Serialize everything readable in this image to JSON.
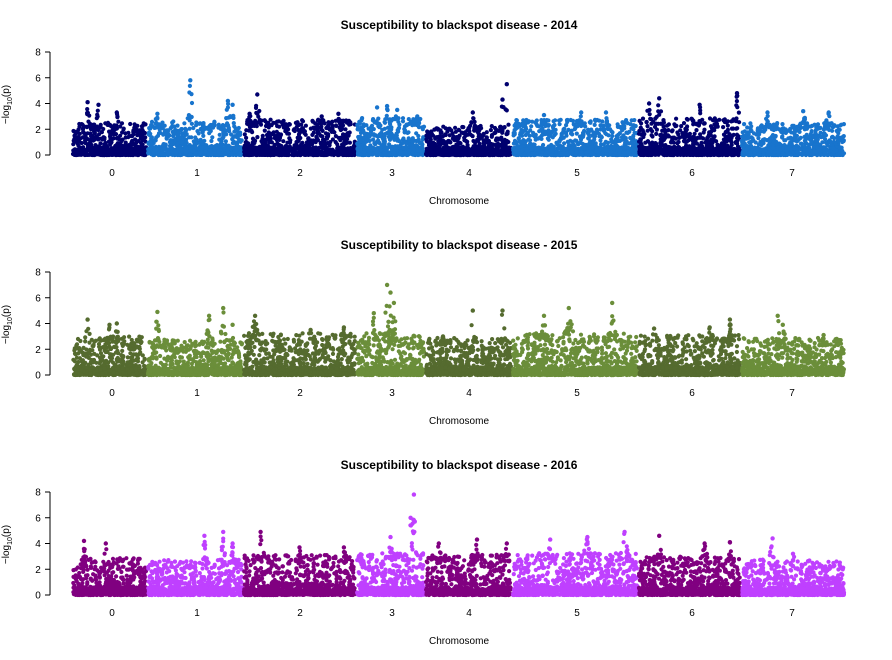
{
  "chart_data": [
    {
      "type": "scatter",
      "title": "Susceptibility to blackspot disease - 2014",
      "xlabel": "Chromosome",
      "ylabel_prefix": "−log",
      "ylabel_sub": "10",
      "ylabel_suffix": "(p)",
      "ylim": [
        0,
        8
      ],
      "yticks": [
        "0",
        "2",
        "4",
        "6",
        "8"
      ],
      "colors": [
        "#00006e",
        "#1874cd"
      ],
      "categories": [
        "0",
        "1",
        "2",
        "3",
        "4",
        "5",
        "6",
        "7"
      ],
      "series": [
        {
          "chromosome": "0",
          "color": "#00006e",
          "base_max": 2.0,
          "peaks": [
            [
              0.2,
              4.1
            ],
            [
              0.35,
              3.9
            ],
            [
              0.6,
              3.3
            ],
            [
              0.85,
              1.2
            ],
            [
              0.95,
              0.7
            ]
          ]
        },
        {
          "chromosome": "1",
          "color": "#1874cd",
          "base_max": 2.1,
          "peaks": [
            [
              0.1,
              3.2
            ],
            [
              0.45,
              5.8
            ],
            [
              0.85,
              4.2
            ],
            [
              0.9,
              3.9
            ]
          ]
        },
        {
          "chromosome": "2",
          "color": "#00006e",
          "base_max": 2.2,
          "peaks": [
            [
              0.05,
              3.2
            ],
            [
              0.12,
              4.7
            ],
            [
              0.7,
              3.0
            ],
            [
              0.85,
              3.2
            ]
          ]
        },
        {
          "chromosome": "3",
          "color": "#1874cd",
          "base_max": 2.3,
          "peaks": [
            [
              0.3,
              3.7
            ],
            [
              0.45,
              3.8
            ],
            [
              0.6,
              3.5
            ],
            [
              0.9,
              3.0
            ]
          ]
        },
        {
          "chromosome": "4",
          "color": "#00006e",
          "base_max": 1.8,
          "peaks": [
            [
              0.55,
              3.3
            ],
            [
              0.9,
              4.3
            ],
            [
              0.95,
              5.5
            ]
          ]
        },
        {
          "chromosome": "5",
          "color": "#1874cd",
          "base_max": 2.2,
          "peaks": [
            [
              0.25,
              3.1
            ],
            [
              0.55,
              3.3
            ],
            [
              0.75,
              3.3
            ]
          ]
        },
        {
          "chromosome": "6",
          "color": "#00006e",
          "base_max": 2.3,
          "peaks": [
            [
              0.1,
              4.0
            ],
            [
              0.2,
              4.4
            ],
            [
              0.6,
              3.9
            ],
            [
              0.97,
              4.8
            ]
          ]
        },
        {
          "chromosome": "7",
          "color": "#1874cd",
          "base_max": 2.0,
          "peaks": [
            [
              0.25,
              3.3
            ],
            [
              0.6,
              3.4
            ],
            [
              0.85,
              3.3
            ]
          ]
        }
      ]
    },
    {
      "type": "scatter",
      "title": "Susceptibility to blackspot disease - 2015",
      "xlabel": "Chromosome",
      "ylabel_prefix": "−log",
      "ylabel_sub": "10",
      "ylabel_suffix": "(p)",
      "ylim": [
        0,
        8
      ],
      "yticks": [
        "0",
        "2",
        "4",
        "6",
        "8"
      ],
      "colors": [
        "#556b2f",
        "#6b8e3a"
      ],
      "categories": [
        "0",
        "1",
        "2",
        "3",
        "4",
        "5",
        "6",
        "7"
      ],
      "series": [
        {
          "chromosome": "0",
          "color": "#556b2f",
          "base_max": 2.4,
          "peaks": [
            [
              0.2,
              4.3
            ],
            [
              0.5,
              3.9
            ],
            [
              0.6,
              4.0
            ],
            [
              0.9,
              0.6
            ]
          ]
        },
        {
          "chromosome": "1",
          "color": "#6b8e3a",
          "base_max": 2.2,
          "peaks": [
            [
              0.1,
              4.9
            ],
            [
              0.65,
              4.6
            ],
            [
              0.8,
              5.2
            ],
            [
              0.9,
              3.9
            ]
          ]
        },
        {
          "chromosome": "2",
          "color": "#556b2f",
          "base_max": 2.6,
          "peaks": [
            [
              0.1,
              4.6
            ],
            [
              0.6,
              3.5
            ],
            [
              0.9,
              3.7
            ]
          ]
        },
        {
          "chromosome": "3",
          "color": "#6b8e3a",
          "base_max": 2.6,
          "peaks": [
            [
              0.25,
              4.8
            ],
            [
              0.45,
              7.0
            ],
            [
              0.5,
              6.4
            ],
            [
              0.55,
              5.6
            ]
          ]
        },
        {
          "chromosome": "4",
          "color": "#556b2f",
          "base_max": 2.3,
          "peaks": [
            [
              0.2,
              3.0
            ],
            [
              0.55,
              5.0
            ],
            [
              0.9,
              5.0
            ]
          ]
        },
        {
          "chromosome": "5",
          "color": "#6b8e3a",
          "base_max": 2.6,
          "peaks": [
            [
              0.25,
              4.6
            ],
            [
              0.45,
              5.2
            ],
            [
              0.8,
              5.6
            ]
          ]
        },
        {
          "chromosome": "6",
          "color": "#556b2f",
          "base_max": 2.5,
          "peaks": [
            [
              0.15,
              3.6
            ],
            [
              0.7,
              3.7
            ],
            [
              0.9,
              4.3
            ]
          ]
        },
        {
          "chromosome": "7",
          "color": "#6b8e3a",
          "base_max": 2.3,
          "peaks": [
            [
              0.35,
              4.6
            ],
            [
              0.4,
              3.9
            ],
            [
              0.8,
              3.1
            ]
          ]
        }
      ]
    },
    {
      "type": "scatter",
      "title": "Susceptibility to blackspot disease - 2016",
      "xlabel": "Chromosome",
      "ylabel_prefix": "−log",
      "ylabel_sub": "10",
      "ylabel_suffix": "(p)",
      "ylim": [
        0,
        8
      ],
      "yticks": [
        "0",
        "2",
        "4",
        "6",
        "8"
      ],
      "colors": [
        "#800080",
        "#bf40ff"
      ],
      "categories": [
        "0",
        "1",
        "2",
        "3",
        "4",
        "5",
        "6",
        "7"
      ],
      "series": [
        {
          "chromosome": "0",
          "color": "#800080",
          "base_max": 2.3,
          "peaks": [
            [
              0.15,
              4.2
            ],
            [
              0.45,
              4.0
            ],
            [
              0.95,
              0.8
            ]
          ]
        },
        {
          "chromosome": "1",
          "color": "#bf40ff",
          "base_max": 2.2,
          "peaks": [
            [
              0.6,
              4.6
            ],
            [
              0.8,
              4.9
            ],
            [
              0.9,
              4.0
            ]
          ]
        },
        {
          "chromosome": "2",
          "color": "#800080",
          "base_max": 2.5,
          "peaks": [
            [
              0.15,
              4.9
            ],
            [
              0.5,
              3.7
            ],
            [
              0.9,
              3.7
            ]
          ]
        },
        {
          "chromosome": "3",
          "color": "#bf40ff",
          "base_max": 2.6,
          "peaks": [
            [
              0.5,
              4.5
            ],
            [
              0.8,
              6.0
            ],
            [
              0.85,
              7.8
            ]
          ]
        },
        {
          "chromosome": "4",
          "color": "#800080",
          "base_max": 2.5,
          "peaks": [
            [
              0.15,
              4.0
            ],
            [
              0.6,
              4.3
            ],
            [
              0.95,
              4.0
            ]
          ]
        },
        {
          "chromosome": "5",
          "color": "#bf40ff",
          "base_max": 2.6,
          "peaks": [
            [
              0.3,
              4.3
            ],
            [
              0.6,
              4.5
            ],
            [
              0.9,
              4.9
            ]
          ]
        },
        {
          "chromosome": "6",
          "color": "#800080",
          "base_max": 2.4,
          "peaks": [
            [
              0.2,
              4.6
            ],
            [
              0.65,
              4.0
            ],
            [
              0.9,
              4.1
            ]
          ]
        },
        {
          "chromosome": "7",
          "color": "#bf40ff",
          "base_max": 2.2,
          "peaks": [
            [
              0.3,
              4.4
            ],
            [
              0.5,
              3.2
            ]
          ]
        }
      ]
    }
  ]
}
